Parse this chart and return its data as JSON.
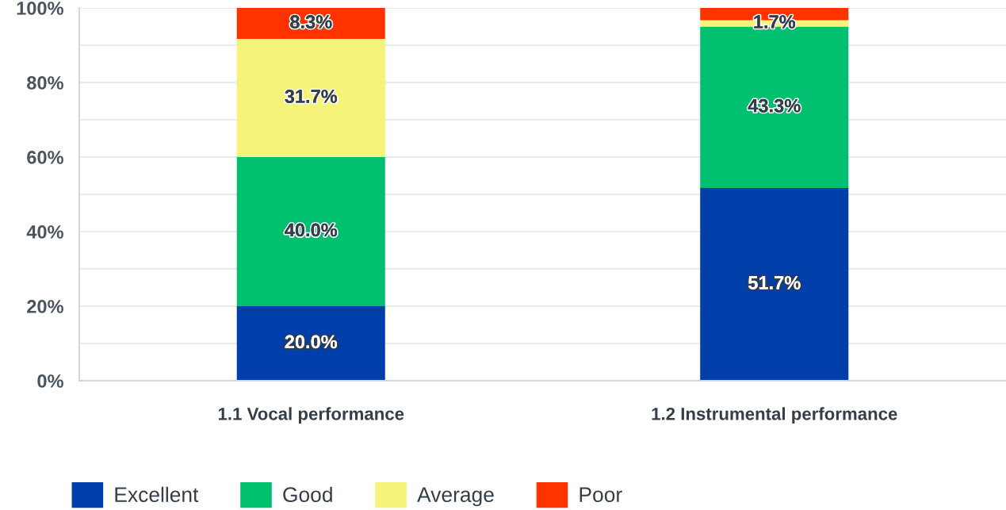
{
  "chart_data": {
    "type": "bar",
    "stacked": true,
    "categories": [
      "1.1 Vocal performance",
      "1.2 Instrumental performance"
    ],
    "series": [
      {
        "name": "Excellent",
        "color": "#003fa9",
        "values": [
          20.0,
          51.7
        ],
        "value_labels": [
          "20.0%",
          "51.7%"
        ]
      },
      {
        "name": "Good",
        "color": "#00bf6f",
        "values": [
          40.0,
          43.3
        ],
        "value_labels": [
          "40.0%",
          "43.3%"
        ]
      },
      {
        "name": "Average",
        "color": "#f6f37a",
        "values": [
          31.7,
          1.7
        ],
        "value_labels": [
          "31.7%",
          "1.7%"
        ]
      },
      {
        "name": "Poor",
        "color": "#ff3300",
        "values": [
          8.3,
          3.3
        ],
        "value_labels": [
          "8.3%",
          null
        ]
      }
    ],
    "ylim": [
      0,
      100
    ],
    "yticks": [
      {
        "value": 0,
        "label": "0%"
      },
      {
        "value": 10,
        "label": null
      },
      {
        "value": 20,
        "label": "20%"
      },
      {
        "value": 30,
        "label": null
      },
      {
        "value": 40,
        "label": "40%"
      },
      {
        "value": 50,
        "label": null
      },
      {
        "value": 60,
        "label": "60%"
      },
      {
        "value": 70,
        "label": null
      },
      {
        "value": 80,
        "label": "80%"
      },
      {
        "value": 90,
        "label": null
      },
      {
        "value": 100,
        "label": "100%"
      }
    ],
    "grid": "y",
    "legend": "bottom"
  }
}
